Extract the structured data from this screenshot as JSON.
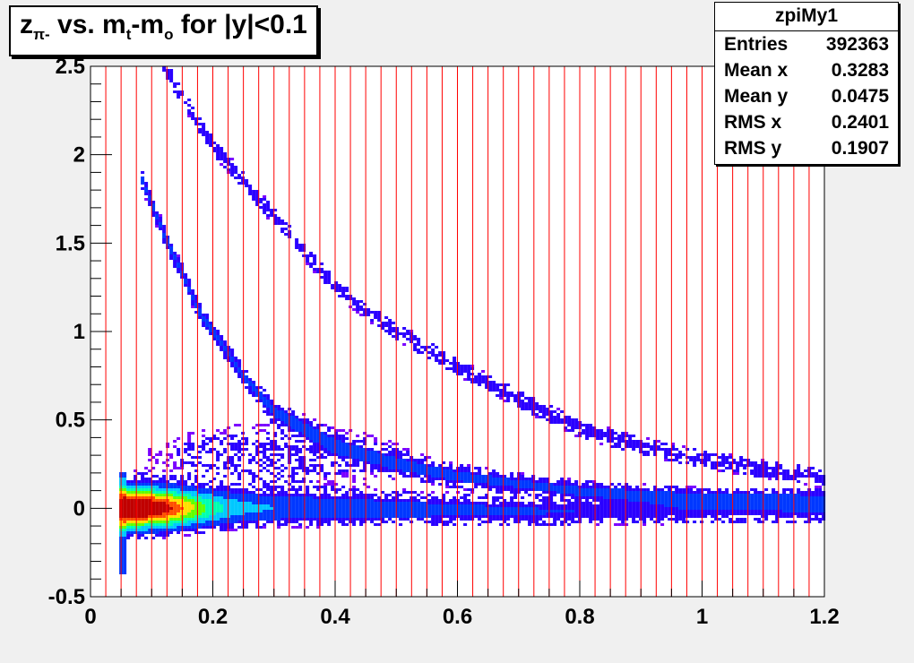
{
  "title": {
    "prefix": "z",
    "sub1": "π-",
    "mid": " vs. m",
    "sub2": "t",
    "mid2": "-m",
    "sub3": "o",
    "suffix": " for |y|<0.1"
  },
  "stats": {
    "name": "zpiMy1",
    "rows": [
      {
        "label": "Entries",
        "value": "392363"
      },
      {
        "label": "Mean x",
        "value": "0.3283"
      },
      {
        "label": "Mean y",
        "value": "0.0475"
      },
      {
        "label": "RMS x",
        "value": "0.2401"
      },
      {
        "label": "RMS y",
        "value": "0.1907"
      }
    ]
  },
  "colors": {
    "background": "#f0f0f0",
    "frame": "#ffffff",
    "slice_lines": "#ff0000",
    "palette": [
      "#7a00ff",
      "#2a00ff",
      "#0038ff",
      "#00c8ff",
      "#00ffb0",
      "#60ff00",
      "#ffe000",
      "#ff5000",
      "#c00000"
    ]
  },
  "chart_data": {
    "type": "heatmap",
    "title": "zπ- vs. mt-mo for |y|<0.1",
    "xlabel": "",
    "ylabel": "",
    "xlim": [
      0,
      1.2
    ],
    "ylim": [
      -0.5,
      2.5
    ],
    "x_ticks": [
      "0",
      "0.2",
      "0.4",
      "0.6",
      "0.8",
      "1",
      "1.2"
    ],
    "y_ticks": [
      "-0.5",
      "0",
      "0.5",
      "1",
      "1.5",
      "2",
      "2.5"
    ],
    "grid": false,
    "vertical_slice_lines_x": [
      0.025,
      0.05,
      0.075,
      0.1,
      0.125,
      0.15,
      0.175,
      0.2,
      0.225,
      0.25,
      0.275,
      0.3,
      0.325,
      0.35,
      0.375,
      0.4,
      0.425,
      0.45,
      0.475,
      0.5,
      0.525,
      0.55,
      0.575,
      0.6,
      0.625,
      0.65,
      0.675,
      0.7,
      0.725,
      0.75,
      0.775,
      0.8,
      0.825,
      0.85,
      0.875,
      0.9,
      0.925,
      0.95,
      0.975,
      1.0,
      1.025,
      1.05,
      1.075,
      1.1,
      1.125,
      1.15,
      1.175
    ],
    "bands": [
      {
        "name": "main",
        "x_range": [
          0.05,
          1.2
        ],
        "y_center": [
          [
            0.05,
            0.0
          ],
          [
            0.3,
            0.0
          ],
          [
            0.8,
            -0.02
          ],
          [
            1.2,
            -0.02
          ]
        ],
        "width": [
          [
            0.05,
            0.12
          ],
          [
            0.3,
            0.1
          ],
          [
            1.2,
            0.08
          ]
        ],
        "peak_x": 0.08
      },
      {
        "name": "upper-curve",
        "y_center": [
          [
            0.12,
            2.5
          ],
          [
            0.2,
            2.05
          ],
          [
            0.3,
            1.65
          ],
          [
            0.4,
            1.25
          ],
          [
            0.5,
            1.0
          ],
          [
            0.6,
            0.8
          ],
          [
            0.7,
            0.62
          ],
          [
            0.8,
            0.45
          ],
          [
            0.9,
            0.35
          ],
          [
            1.0,
            0.28
          ],
          [
            1.1,
            0.22
          ],
          [
            1.2,
            0.18
          ]
        ]
      },
      {
        "name": "lower-curve",
        "y_center": [
          [
            0.08,
            1.9
          ],
          [
            0.12,
            1.55
          ],
          [
            0.18,
            1.1
          ],
          [
            0.25,
            0.75
          ],
          [
            0.3,
            0.55
          ],
          [
            0.4,
            0.35
          ],
          [
            0.5,
            0.25
          ],
          [
            0.6,
            0.18
          ],
          [
            0.8,
            0.1
          ],
          [
            1.0,
            0.06
          ],
          [
            1.2,
            0.05
          ]
        ]
      },
      {
        "name": "low-mt-spike",
        "x": 0.05,
        "y_range": [
          -0.38,
          0.2
        ]
      }
    ]
  }
}
